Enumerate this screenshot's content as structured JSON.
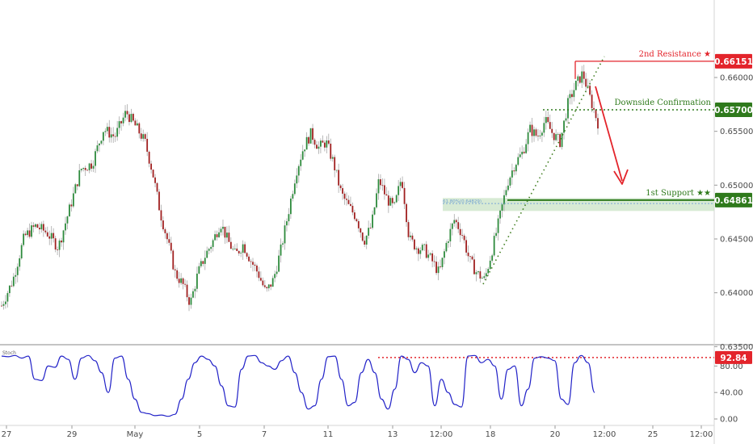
{
  "chart_data": {
    "type": "candlestick",
    "price_axis": {
      "ticks": [
        "0.66000",
        "0.65500",
        "0.65000",
        "0.64500",
        "0.64000",
        "0.63500"
      ],
      "tick_values": [
        0.66,
        0.655,
        0.65,
        0.645,
        0.64,
        0.635
      ],
      "ylim": [
        0.63525,
        0.6672
      ]
    },
    "time_axis": {
      "ticks": [
        "27",
        "29",
        "May",
        "5",
        "7",
        "11",
        "13",
        "12:00",
        "18",
        "20",
        "12:00",
        "25",
        "12:00"
      ]
    },
    "levels": [
      {
        "name": "2nd Resistance ★",
        "value": 0.66151,
        "badge": "0.66151",
        "color": "#e3242b"
      },
      {
        "name": "Downside Confirmation",
        "value": 0.657,
        "badge": "0.65700",
        "color": "#2f7a1c"
      },
      {
        "name": "1st Support ★★",
        "value": 0.64861,
        "badge": "0.64861",
        "color": "#2f7a1c"
      }
    ],
    "fib_label": "61.80%(0.64829)",
    "fib_value": 0.64829,
    "support_zone": [
      0.6476,
      0.6488
    ],
    "close_path": [
      [
        0,
        0.6388
      ],
      [
        3,
        0.6412
      ],
      [
        6,
        0.6452
      ],
      [
        9,
        0.6462
      ],
      [
        12,
        0.6456
      ],
      [
        15,
        0.6442
      ],
      [
        18,
        0.6478
      ],
      [
        21,
        0.6515
      ],
      [
        24,
        0.652
      ],
      [
        27,
        0.6552
      ],
      [
        30,
        0.6545
      ],
      [
        33,
        0.6568
      ],
      [
        36,
        0.6552
      ],
      [
        38,
        0.654
      ],
      [
        40,
        0.6512
      ],
      [
        42,
        0.6475
      ],
      [
        44,
        0.6448
      ],
      [
        46,
        0.6418
      ],
      [
        48,
        0.6408
      ],
      [
        50,
        0.639
      ],
      [
        52,
        0.6418
      ],
      [
        54,
        0.6435
      ],
      [
        56,
        0.6448
      ],
      [
        58,
        0.6465
      ],
      [
        60,
        0.6448
      ],
      [
        62,
        0.6435
      ],
      [
        64,
        0.6445
      ],
      [
        66,
        0.643
      ],
      [
        68,
        0.6418
      ],
      [
        70,
        0.64
      ],
      [
        72,
        0.6412
      ],
      [
        74,
        0.644
      ],
      [
        76,
        0.6475
      ],
      [
        78,
        0.6512
      ],
      [
        80,
        0.6535
      ],
      [
        82,
        0.6548
      ],
      [
        84,
        0.6535
      ],
      [
        86,
        0.654
      ],
      [
        88,
        0.652
      ],
      [
        90,
        0.6492
      ],
      [
        92,
        0.648
      ],
      [
        94,
        0.647
      ],
      [
        96,
        0.6448
      ],
      [
        98,
        0.6462
      ],
      [
        100,
        0.6505
      ],
      [
        102,
        0.6488
      ],
      [
        104,
        0.6478
      ],
      [
        106,
        0.6508
      ],
      [
        108,
        0.645
      ],
      [
        110,
        0.6442
      ],
      [
        112,
        0.644
      ],
      [
        114,
        0.643
      ],
      [
        116,
        0.6418
      ],
      [
        118,
        0.6448
      ],
      [
        120,
        0.6468
      ],
      [
        122,
        0.6455
      ],
      [
        124,
        0.643
      ],
      [
        126,
        0.6418
      ],
      [
        128,
        0.6412
      ],
      [
        130,
        0.644
      ],
      [
        132,
        0.647
      ],
      [
        134,
        0.6502
      ],
      [
        136,
        0.652
      ],
      [
        138,
        0.653
      ],
      [
        140,
        0.6552
      ],
      [
        142,
        0.6545
      ],
      [
        144,
        0.656
      ],
      [
        146,
        0.6548
      ],
      [
        148,
        0.654
      ],
      [
        150,
        0.6575
      ],
      [
        152,
        0.6592
      ],
      [
        154,
        0.6604
      ],
      [
        156,
        0.658
      ],
      [
        158,
        0.6558
      ]
    ]
  },
  "stoch": {
    "label": "Stoch",
    "ticks": [
      "80.00",
      "40.00",
      "0.00"
    ],
    "tick_values": [
      80,
      40,
      0
    ],
    "level_badge": "92.84",
    "level_value": 92.84,
    "values": [
      95,
      94,
      96,
      92,
      95,
      60,
      58,
      80,
      78,
      95,
      90,
      60,
      92,
      96,
      88,
      70,
      40,
      92,
      95,
      60,
      30,
      10,
      8,
      5,
      6,
      4,
      7,
      30,
      60,
      85,
      95,
      90,
      80,
      50,
      20,
      18,
      75,
      95,
      96,
      85,
      80,
      75,
      88,
      95,
      70,
      40,
      15,
      20,
      60,
      94,
      95,
      60,
      20,
      25,
      70,
      90,
      70,
      30,
      15,
      45,
      95,
      90,
      70,
      85,
      80,
      20,
      60,
      40,
      22,
      18,
      95,
      96,
      85,
      90,
      80,
      30,
      75,
      80,
      20,
      45,
      92,
      94,
      92,
      88,
      30,
      22,
      85,
      96,
      85,
      40
    ]
  }
}
